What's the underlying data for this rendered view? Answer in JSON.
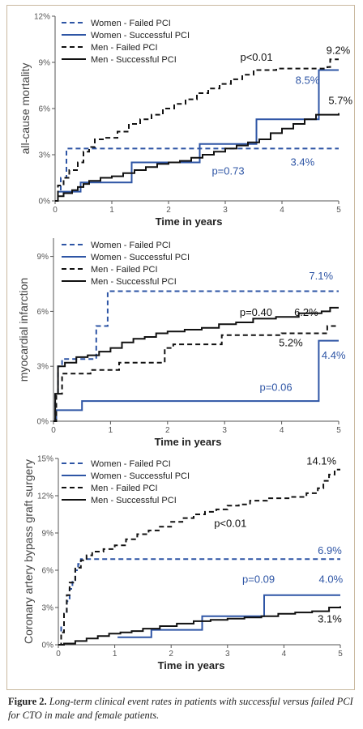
{
  "colors": {
    "women": "#2e55a5",
    "men": "#111111",
    "axis": "#555555",
    "frame": "#c9b9a0"
  },
  "caption": {
    "label": "Figure 2.",
    "text": "Long-term clinical event rates in patients with successful versus failed PCI for CTO in male and female patients."
  },
  "chart_data": [
    {
      "type": "line",
      "step": true,
      "ylabel": "all-cause mortality",
      "xlabel": "Time in years",
      "xlim": [
        0,
        5
      ],
      "ylim": [
        0,
        12
      ],
      "x_ticks": [
        "0",
        "1",
        "2",
        "3",
        "4",
        "5"
      ],
      "y_ticks": [
        "0%",
        "3%",
        "6%",
        "9%",
        "12%"
      ],
      "grid": false,
      "legend": "top-left",
      "series": [
        {
          "name": "Women - Failed PCI",
          "color": "#2e55a5",
          "dash": true,
          "points": [
            [
              0,
              0
            ],
            [
              0.05,
              0.6
            ],
            [
              0.1,
              1.5
            ],
            [
              0.2,
              3.4
            ],
            [
              5,
              3.4
            ]
          ]
        },
        {
          "name": "Women - Successful PCI",
          "color": "#2e55a5",
          "dash": false,
          "points": [
            [
              0,
              0
            ],
            [
              0.05,
              0.6
            ],
            [
              0.4,
              0.6
            ],
            [
              0.45,
              1.2
            ],
            [
              1.3,
              1.2
            ],
            [
              1.35,
              2.5
            ],
            [
              2.5,
              2.5
            ],
            [
              2.55,
              3.7
            ],
            [
              3.5,
              3.7
            ],
            [
              3.55,
              5.3
            ],
            [
              4.6,
              5.3
            ],
            [
              4.65,
              8.5
            ],
            [
              5,
              8.5
            ]
          ]
        },
        {
          "name": "Men - Failed PCI",
          "color": "#111111",
          "dash": true,
          "points": [
            [
              0,
              0
            ],
            [
              0.05,
              1
            ],
            [
              0.15,
              1.5
            ],
            [
              0.25,
              2
            ],
            [
              0.4,
              2.5
            ],
            [
              0.5,
              3.2
            ],
            [
              0.6,
              3.5
            ],
            [
              0.7,
              4
            ],
            [
              0.9,
              4.1
            ],
            [
              1.1,
              4.5
            ],
            [
              1.3,
              5
            ],
            [
              1.5,
              5.3
            ],
            [
              1.7,
              5.6
            ],
            [
              1.9,
              6
            ],
            [
              2.1,
              6.3
            ],
            [
              2.3,
              6.6
            ],
            [
              2.5,
              7
            ],
            [
              2.7,
              7.3
            ],
            [
              2.9,
              7.6
            ],
            [
              3.1,
              7.9
            ],
            [
              3.3,
              8.2
            ],
            [
              3.5,
              8.5
            ],
            [
              3.9,
              8.6
            ],
            [
              4.4,
              8.6
            ],
            [
              4.8,
              8.7
            ],
            [
              4.85,
              9.2
            ],
            [
              5,
              9.2
            ]
          ]
        },
        {
          "name": "Men - Successful PCI",
          "color": "#111111",
          "dash": false,
          "points": [
            [
              0,
              0
            ],
            [
              0.05,
              0.3
            ],
            [
              0.15,
              0.5
            ],
            [
              0.3,
              0.7
            ],
            [
              0.4,
              0.9
            ],
            [
              0.5,
              1.1
            ],
            [
              0.6,
              1.3
            ],
            [
              0.8,
              1.5
            ],
            [
              1,
              1.6
            ],
            [
              1.2,
              1.8
            ],
            [
              1.4,
              2
            ],
            [
              1.6,
              2.2
            ],
            [
              1.8,
              2.4
            ],
            [
              2,
              2.5
            ],
            [
              2.2,
              2.6
            ],
            [
              2.4,
              2.8
            ],
            [
              2.6,
              3
            ],
            [
              2.8,
              3.2
            ],
            [
              3,
              3.4
            ],
            [
              3.2,
              3.6
            ],
            [
              3.4,
              3.8
            ],
            [
              3.6,
              4
            ],
            [
              3.8,
              4.4
            ],
            [
              4,
              4.7
            ],
            [
              4.2,
              5
            ],
            [
              4.4,
              5.3
            ],
            [
              4.6,
              5.6
            ],
            [
              5,
              5.7
            ]
          ]
        }
      ],
      "annotations": [
        {
          "text": "9.2%",
          "color": "#111111"
        },
        {
          "text": "p<0.01",
          "color": "#111111"
        },
        {
          "text": "8.5%",
          "color": "#2e55a5"
        },
        {
          "text": "5.7%",
          "color": "#111111"
        },
        {
          "text": "3.4%",
          "color": "#2e55a5"
        },
        {
          "text": "p=0.73",
          "color": "#2e55a5"
        }
      ]
    },
    {
      "type": "line",
      "step": true,
      "ylabel": "myocardial infarction",
      "xlabel": "Time in years",
      "xlim": [
        0,
        5
      ],
      "ylim": [
        0,
        10
      ],
      "x_ticks": [
        "0",
        "1",
        "2",
        "3",
        "4",
        "5"
      ],
      "y_ticks": [
        "0%",
        "3%",
        "6%",
        "9%"
      ],
      "grid": false,
      "legend": "top-left",
      "series": [
        {
          "name": "Women - Failed PCI",
          "color": "#2e55a5",
          "dash": true,
          "points": [
            [
              0,
              0
            ],
            [
              0.03,
              1.5
            ],
            [
              0.08,
              3
            ],
            [
              0.15,
              3.4
            ],
            [
              0.7,
              3.4
            ],
            [
              0.75,
              5.2
            ],
            [
              0.9,
              5.2
            ],
            [
              0.95,
              7.1
            ],
            [
              5,
              7.1
            ]
          ]
        },
        {
          "name": "Women - Successful PCI",
          "color": "#2e55a5",
          "dash": false,
          "points": [
            [
              0,
              0
            ],
            [
              0.05,
              0.6
            ],
            [
              0.45,
              0.6
            ],
            [
              0.5,
              1.1
            ],
            [
              4.6,
              1.1
            ],
            [
              4.65,
              4.4
            ],
            [
              5,
              4.4
            ]
          ]
        },
        {
          "name": "Men - Failed PCI",
          "color": "#111111",
          "dash": true,
          "points": [
            [
              0,
              0
            ],
            [
              0.05,
              1.5
            ],
            [
              0.15,
              2.6
            ],
            [
              0.6,
              2.6
            ],
            [
              0.65,
              2.8
            ],
            [
              1.1,
              2.8
            ],
            [
              1.15,
              3.2
            ],
            [
              1.9,
              3.2
            ],
            [
              1.95,
              4
            ],
            [
              2.05,
              4
            ],
            [
              2.1,
              4.2
            ],
            [
              2.9,
              4.2
            ],
            [
              2.95,
              4.7
            ],
            [
              3.5,
              4.7
            ],
            [
              4,
              4.8
            ],
            [
              4.6,
              4.8
            ],
            [
              4.8,
              5.2
            ],
            [
              5,
              5.2
            ]
          ]
        },
        {
          "name": "Men - Successful PCI",
          "color": "#111111",
          "dash": false,
          "points": [
            [
              0,
              0
            ],
            [
              0.03,
              1.5
            ],
            [
              0.08,
              3
            ],
            [
              0.2,
              3.2
            ],
            [
              0.4,
              3.5
            ],
            [
              0.6,
              3.6
            ],
            [
              0.8,
              3.8
            ],
            [
              1,
              4
            ],
            [
              1.2,
              4.3
            ],
            [
              1.4,
              4.5
            ],
            [
              1.6,
              4.6
            ],
            [
              1.8,
              4.8
            ],
            [
              2,
              4.9
            ],
            [
              2.3,
              5
            ],
            [
              2.6,
              5.1
            ],
            [
              2.9,
              5.3
            ],
            [
              3.2,
              5.4
            ],
            [
              3.5,
              5.6
            ],
            [
              3.9,
              5.7
            ],
            [
              4.3,
              5.9
            ],
            [
              4.7,
              6
            ],
            [
              4.85,
              6.2
            ],
            [
              5,
              6.2
            ]
          ]
        }
      ],
      "annotations": [
        {
          "text": "7.1%",
          "color": "#2e55a5"
        },
        {
          "text": "p=0.40",
          "color": "#111111"
        },
        {
          "text": "6.2%",
          "color": "#111111"
        },
        {
          "text": "5.2%",
          "color": "#111111"
        },
        {
          "text": "4.4%",
          "color": "#2e55a5"
        },
        {
          "text": "p=0.06",
          "color": "#2e55a5"
        }
      ]
    },
    {
      "type": "line",
      "step": true,
      "ylabel": "Coronary artery bypass graft surgery",
      "xlabel": "Time in years",
      "xlim": [
        0,
        5
      ],
      "ylim": [
        0,
        15
      ],
      "x_ticks": [
        "0",
        "1",
        "2",
        "3",
        "4",
        "5"
      ],
      "y_ticks": [
        "0%",
        "3%",
        "6%",
        "9%",
        "12%",
        "15%"
      ],
      "grid": false,
      "legend": "top-left",
      "series": [
        {
          "name": "Women - Failed PCI",
          "color": "#2e55a5",
          "dash": true,
          "points": [
            [
              0,
              0
            ],
            [
              0.05,
              1.5
            ],
            [
              0.1,
              2.5
            ],
            [
              0.15,
              3.5
            ],
            [
              0.2,
              4.5
            ],
            [
              0.25,
              5.2
            ],
            [
              0.3,
              6
            ],
            [
              0.35,
              6.5
            ],
            [
              0.4,
              6.9
            ],
            [
              5,
              6.9
            ]
          ]
        },
        {
          "name": "Women - Successful PCI",
          "color": "#2e55a5",
          "dash": false,
          "points": [
            [
              1.05,
              0.6
            ],
            [
              1.6,
              0.6
            ],
            [
              1.65,
              1.2
            ],
            [
              2.5,
              1.2
            ],
            [
              2.55,
              2.3
            ],
            [
              3.6,
              2.3
            ],
            [
              3.65,
              4
            ],
            [
              5,
              4
            ]
          ]
        },
        {
          "name": "Men - Failed PCI",
          "color": "#111111",
          "dash": true,
          "points": [
            [
              0,
              0
            ],
            [
              0.05,
              1
            ],
            [
              0.1,
              2.5
            ],
            [
              0.15,
              4
            ],
            [
              0.2,
              5
            ],
            [
              0.3,
              6.2
            ],
            [
              0.4,
              6.8
            ],
            [
              0.5,
              7.2
            ],
            [
              0.6,
              7.5
            ],
            [
              0.8,
              7.7
            ],
            [
              1,
              8
            ],
            [
              1.2,
              8.5
            ],
            [
              1.4,
              8.9
            ],
            [
              1.6,
              9.2
            ],
            [
              1.8,
              9.5
            ],
            [
              2,
              9.9
            ],
            [
              2.2,
              10.2
            ],
            [
              2.4,
              10.5
            ],
            [
              2.6,
              10.7
            ],
            [
              2.8,
              10.9
            ],
            [
              3,
              11.2
            ],
            [
              3.2,
              11.3
            ],
            [
              3.4,
              11.6
            ],
            [
              3.7,
              11.8
            ],
            [
              4.1,
              11.9
            ],
            [
              4.4,
              12.2
            ],
            [
              4.6,
              12.6
            ],
            [
              4.7,
              13.2
            ],
            [
              4.8,
              13.7
            ],
            [
              4.9,
              14.1
            ],
            [
              5,
              14.1
            ]
          ]
        },
        {
          "name": "Men - Successful PCI",
          "color": "#111111",
          "dash": false,
          "points": [
            [
              0,
              0
            ],
            [
              0.1,
              0.1
            ],
            [
              0.3,
              0.3
            ],
            [
              0.5,
              0.5
            ],
            [
              0.7,
              0.7
            ],
            [
              0.9,
              0.9
            ],
            [
              1.1,
              1
            ],
            [
              1.3,
              1.1
            ],
            [
              1.5,
              1.3
            ],
            [
              1.8,
              1.5
            ],
            [
              2.1,
              1.7
            ],
            [
              2.4,
              1.9
            ],
            [
              2.7,
              2
            ],
            [
              3,
              2.1
            ],
            [
              3.3,
              2.2
            ],
            [
              3.6,
              2.3
            ],
            [
              3.9,
              2.5
            ],
            [
              4.2,
              2.6
            ],
            [
              4.5,
              2.7
            ],
            [
              4.8,
              3
            ],
            [
              5,
              3.1
            ]
          ]
        }
      ],
      "annotations": [
        {
          "text": "14.1%",
          "color": "#111111"
        },
        {
          "text": "p<0.01",
          "color": "#111111"
        },
        {
          "text": "6.9%",
          "color": "#2e55a5"
        },
        {
          "text": "p=0.09",
          "color": "#2e55a5"
        },
        {
          "text": "4.0%",
          "color": "#2e55a5"
        },
        {
          "text": "3.1%",
          "color": "#111111"
        }
      ]
    }
  ]
}
